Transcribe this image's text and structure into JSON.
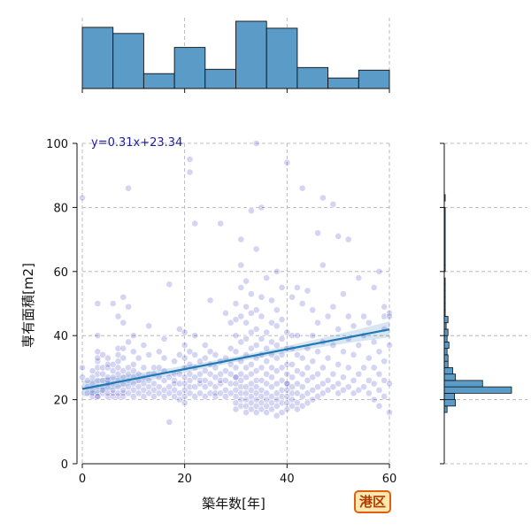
{
  "chart_data": {
    "type": "scatter",
    "xlabel": "築年数[年]",
    "ylabel": "専有面積[m2]",
    "equation": "y=0.31x+23.34",
    "xlim": [
      0,
      60
    ],
    "ylim": [
      0,
      100
    ],
    "xticks": [
      "0",
      "20",
      "40",
      "60"
    ],
    "yticks": [
      "0",
      "20",
      "40",
      "60",
      "80",
      "100"
    ],
    "grid": true,
    "regression": {
      "slope": 0.31,
      "intercept": 23.34
    },
    "colors": {
      "points": "#3a3ac8",
      "line": "#1f77b4",
      "bars": "#5a9bc8",
      "badge_border": "#e06010",
      "badge_fill": "#fde7b0"
    },
    "top_hist": {
      "bin_edges": [
        0,
        6,
        12,
        18,
        24,
        30,
        36,
        42,
        48,
        54,
        60
      ],
      "counts": [
        70,
        63,
        17,
        47,
        22,
        77,
        69,
        24,
        12,
        21
      ]
    },
    "right_hist": {
      "bin_edges": [
        16,
        18,
        20,
        22,
        24,
        26,
        28,
        30,
        32,
        34,
        36,
        38,
        40,
        42,
        44,
        46,
        48,
        50,
        52,
        54,
        56,
        58,
        60,
        62,
        80,
        82,
        84,
        86
      ],
      "counts": [
        3,
        12,
        11,
        72,
        41,
        12,
        9,
        4,
        4,
        3,
        5,
        3,
        4,
        2,
        4,
        1,
        1,
        1,
        1,
        1,
        1,
        0,
        1,
        1,
        0,
        1,
        0
      ]
    },
    "points": [
      [
        0,
        30
      ],
      [
        0,
        27
      ],
      [
        0,
        83
      ],
      [
        1,
        22
      ],
      [
        1,
        24
      ],
      [
        1,
        26
      ],
      [
        2,
        21
      ],
      [
        2,
        23
      ],
      [
        2,
        25
      ],
      [
        2,
        27
      ],
      [
        2,
        29
      ],
      [
        2,
        22
      ],
      [
        3,
        21
      ],
      [
        3,
        22
      ],
      [
        3,
        24
      ],
      [
        3,
        26
      ],
      [
        3,
        28
      ],
      [
        3,
        30
      ],
      [
        3,
        32
      ],
      [
        3,
        33
      ],
      [
        3,
        35
      ],
      [
        3,
        40
      ],
      [
        3,
        50
      ],
      [
        3,
        21
      ],
      [
        4,
        22
      ],
      [
        4,
        24
      ],
      [
        4,
        26
      ],
      [
        4,
        28
      ],
      [
        4,
        30
      ],
      [
        4,
        34
      ],
      [
        4,
        23
      ],
      [
        5,
        21
      ],
      [
        5,
        22
      ],
      [
        5,
        24
      ],
      [
        5,
        25
      ],
      [
        5,
        26
      ],
      [
        5,
        27
      ],
      [
        5,
        30
      ],
      [
        5,
        31
      ],
      [
        5,
        33
      ],
      [
        6,
        21
      ],
      [
        6,
        22
      ],
      [
        6,
        23
      ],
      [
        6,
        25
      ],
      [
        6,
        27
      ],
      [
        6,
        29
      ],
      [
        6,
        31
      ],
      [
        6,
        50
      ],
      [
        7,
        21
      ],
      [
        7,
        22
      ],
      [
        7,
        24
      ],
      [
        7,
        26
      ],
      [
        7,
        28
      ],
      [
        7,
        30
      ],
      [
        7,
        32
      ],
      [
        7,
        34
      ],
      [
        7,
        36
      ],
      [
        7,
        46
      ],
      [
        8,
        21
      ],
      [
        8,
        22
      ],
      [
        8,
        23
      ],
      [
        8,
        25
      ],
      [
        8,
        27
      ],
      [
        8,
        29
      ],
      [
        8,
        33
      ],
      [
        8,
        36
      ],
      [
        8,
        52
      ],
      [
        8,
        44
      ],
      [
        9,
        22
      ],
      [
        9,
        24
      ],
      [
        9,
        26
      ],
      [
        9,
        28
      ],
      [
        9,
        30
      ],
      [
        9,
        86
      ],
      [
        9,
        49
      ],
      [
        9,
        38
      ],
      [
        10,
        21
      ],
      [
        10,
        23
      ],
      [
        10,
        25
      ],
      [
        10,
        27
      ],
      [
        10,
        29
      ],
      [
        10,
        31
      ],
      [
        10,
        35
      ],
      [
        10,
        40
      ],
      [
        11,
        22
      ],
      [
        11,
        24
      ],
      [
        11,
        26
      ],
      [
        11,
        28
      ],
      [
        11,
        33
      ],
      [
        12,
        21
      ],
      [
        12,
        23
      ],
      [
        12,
        25
      ],
      [
        12,
        27
      ],
      [
        12,
        30
      ],
      [
        12,
        37
      ],
      [
        13,
        22
      ],
      [
        13,
        24
      ],
      [
        13,
        26
      ],
      [
        13,
        28
      ],
      [
        13,
        34
      ],
      [
        13,
        43
      ],
      [
        14,
        21
      ],
      [
        14,
        23
      ],
      [
        14,
        25
      ],
      [
        14,
        28
      ],
      [
        14,
        30
      ],
      [
        15,
        22
      ],
      [
        15,
        24
      ],
      [
        15,
        27
      ],
      [
        15,
        30
      ],
      [
        15,
        35
      ],
      [
        16,
        21
      ],
      [
        16,
        23
      ],
      [
        16,
        26
      ],
      [
        16,
        29
      ],
      [
        16,
        33
      ],
      [
        16,
        39
      ],
      [
        17,
        22
      ],
      [
        17,
        24
      ],
      [
        17,
        27
      ],
      [
        17,
        56
      ],
      [
        17,
        13
      ],
      [
        18,
        21
      ],
      [
        18,
        23
      ],
      [
        18,
        26
      ],
      [
        18,
        28
      ],
      [
        18,
        32
      ],
      [
        18,
        25
      ],
      [
        19,
        22
      ],
      [
        19,
        25
      ],
      [
        19,
        28
      ],
      [
        19,
        34
      ],
      [
        19,
        42
      ],
      [
        19,
        20
      ],
      [
        20,
        21
      ],
      [
        20,
        23
      ],
      [
        20,
        25
      ],
      [
        20,
        27
      ],
      [
        20,
        30
      ],
      [
        20,
        33
      ],
      [
        20,
        37
      ],
      [
        20,
        41
      ],
      [
        20,
        19
      ],
      [
        21,
        22
      ],
      [
        21,
        24
      ],
      [
        21,
        26
      ],
      [
        21,
        28
      ],
      [
        21,
        31
      ],
      [
        21,
        35
      ],
      [
        21,
        91
      ],
      [
        21,
        95
      ],
      [
        22,
        21
      ],
      [
        22,
        24
      ],
      [
        22,
        27
      ],
      [
        22,
        30
      ],
      [
        22,
        34
      ],
      [
        22,
        40
      ],
      [
        22,
        75
      ],
      [
        23,
        22
      ],
      [
        23,
        25
      ],
      [
        23,
        28
      ],
      [
        23,
        32
      ],
      [
        23,
        26
      ],
      [
        24,
        21
      ],
      [
        24,
        24
      ],
      [
        24,
        26
      ],
      [
        24,
        29
      ],
      [
        24,
        33
      ],
      [
        24,
        37
      ],
      [
        25,
        22
      ],
      [
        25,
        25
      ],
      [
        25,
        28
      ],
      [
        25,
        31
      ],
      [
        25,
        35
      ],
      [
        25,
        51
      ],
      [
        26,
        21
      ],
      [
        26,
        24
      ],
      [
        26,
        27
      ],
      [
        26,
        30
      ],
      [
        26,
        34
      ],
      [
        26,
        22
      ],
      [
        27,
        22
      ],
      [
        27,
        25
      ],
      [
        27,
        28
      ],
      [
        27,
        32
      ],
      [
        27,
        75
      ],
      [
        27,
        26
      ],
      [
        28,
        21
      ],
      [
        28,
        23
      ],
      [
        28,
        26
      ],
      [
        28,
        29
      ],
      [
        28,
        33
      ],
      [
        28,
        47
      ],
      [
        29,
        22
      ],
      [
        29,
        25
      ],
      [
        29,
        28
      ],
      [
        29,
        31
      ],
      [
        29,
        36
      ],
      [
        29,
        44
      ],
      [
        30,
        17
      ],
      [
        30,
        19
      ],
      [
        30,
        21
      ],
      [
        30,
        23
      ],
      [
        30,
        25
      ],
      [
        30,
        27
      ],
      [
        30,
        30
      ],
      [
        30,
        35
      ],
      [
        30,
        40
      ],
      [
        30,
        45
      ],
      [
        30,
        50
      ],
      [
        30,
        27
      ],
      [
        31,
        18
      ],
      [
        31,
        20
      ],
      [
        31,
        22
      ],
      [
        31,
        24
      ],
      [
        31,
        26
      ],
      [
        31,
        28
      ],
      [
        31,
        32
      ],
      [
        31,
        38
      ],
      [
        31,
        46
      ],
      [
        31,
        55
      ],
      [
        31,
        62
      ],
      [
        31,
        70
      ],
      [
        32,
        16
      ],
      [
        32,
        18
      ],
      [
        32,
        20
      ],
      [
        32,
        22
      ],
      [
        32,
        24
      ],
      [
        32,
        27
      ],
      [
        32,
        30
      ],
      [
        32,
        34
      ],
      [
        32,
        39
      ],
      [
        32,
        44
      ],
      [
        32,
        49
      ],
      [
        32,
        57
      ],
      [
        33,
        17
      ],
      [
        33,
        19
      ],
      [
        33,
        21
      ],
      [
        33,
        23
      ],
      [
        33,
        25
      ],
      [
        33,
        28
      ],
      [
        33,
        31
      ],
      [
        33,
        36
      ],
      [
        33,
        41
      ],
      [
        33,
        47
      ],
      [
        33,
        53
      ],
      [
        33,
        79
      ],
      [
        34,
        16
      ],
      [
        34,
        18
      ],
      [
        34,
        20
      ],
      [
        34,
        22
      ],
      [
        34,
        24
      ],
      [
        34,
        26
      ],
      [
        34,
        29
      ],
      [
        34,
        33
      ],
      [
        34,
        37
      ],
      [
        34,
        42
      ],
      [
        34,
        48
      ],
      [
        34,
        67
      ],
      [
        34,
        100
      ],
      [
        35,
        17
      ],
      [
        35,
        19
      ],
      [
        35,
        21
      ],
      [
        35,
        23
      ],
      [
        35,
        26
      ],
      [
        35,
        30
      ],
      [
        35,
        34
      ],
      [
        35,
        39
      ],
      [
        35,
        46
      ],
      [
        35,
        52
      ],
      [
        35,
        80
      ],
      [
        36,
        16
      ],
      [
        36,
        18
      ],
      [
        36,
        20
      ],
      [
        36,
        22
      ],
      [
        36,
        25
      ],
      [
        36,
        28
      ],
      [
        36,
        32
      ],
      [
        36,
        36
      ],
      [
        36,
        41
      ],
      [
        36,
        58
      ],
      [
        37,
        17
      ],
      [
        37,
        19
      ],
      [
        37,
        21
      ],
      [
        37,
        24
      ],
      [
        37,
        27
      ],
      [
        37,
        30
      ],
      [
        37,
        34
      ],
      [
        37,
        38
      ],
      [
        37,
        44
      ],
      [
        37,
        51
      ],
      [
        38,
        15
      ],
      [
        38,
        18
      ],
      [
        38,
        20
      ],
      [
        38,
        22
      ],
      [
        38,
        25
      ],
      [
        38,
        29
      ],
      [
        38,
        33
      ],
      [
        38,
        37
      ],
      [
        38,
        43
      ],
      [
        38,
        48
      ],
      [
        38,
        60
      ],
      [
        39,
        16
      ],
      [
        39,
        19
      ],
      [
        39,
        21
      ],
      [
        39,
        23
      ],
      [
        39,
        26
      ],
      [
        39,
        30
      ],
      [
        39,
        34
      ],
      [
        39,
        39
      ],
      [
        39,
        45
      ],
      [
        39,
        55
      ],
      [
        40,
        17
      ],
      [
        40,
        19
      ],
      [
        40,
        21
      ],
      [
        40,
        23
      ],
      [
        40,
        25
      ],
      [
        40,
        28
      ],
      [
        40,
        31
      ],
      [
        40,
        36
      ],
      [
        40,
        41
      ],
      [
        40,
        94
      ],
      [
        40,
        25
      ],
      [
        41,
        18
      ],
      [
        41,
        20
      ],
      [
        41,
        22
      ],
      [
        41,
        24
      ],
      [
        41,
        27
      ],
      [
        41,
        31
      ],
      [
        41,
        36
      ],
      [
        41,
        40
      ],
      [
        41,
        52
      ],
      [
        42,
        17
      ],
      [
        42,
        19
      ],
      [
        42,
        22
      ],
      [
        42,
        25
      ],
      [
        42,
        29
      ],
      [
        42,
        34
      ],
      [
        42,
        40
      ],
      [
        42,
        55
      ],
      [
        43,
        18
      ],
      [
        43,
        21
      ],
      [
        43,
        24
      ],
      [
        43,
        28
      ],
      [
        43,
        33
      ],
      [
        43,
        50
      ],
      [
        43,
        86
      ],
      [
        44,
        19
      ],
      [
        44,
        22
      ],
      [
        44,
        26
      ],
      [
        44,
        30
      ],
      [
        44,
        36
      ],
      [
        44,
        54
      ],
      [
        45,
        20
      ],
      [
        45,
        23
      ],
      [
        45,
        27
      ],
      [
        45,
        32
      ],
      [
        45,
        40
      ],
      [
        45,
        48
      ],
      [
        46,
        21
      ],
      [
        46,
        24
      ],
      [
        46,
        28
      ],
      [
        46,
        35
      ],
      [
        46,
        44
      ],
      [
        46,
        72
      ],
      [
        47,
        22
      ],
      [
        47,
        25
      ],
      [
        47,
        30
      ],
      [
        47,
        38
      ],
      [
        47,
        62
      ],
      [
        47,
        83
      ],
      [
        48,
        23
      ],
      [
        48,
        26
      ],
      [
        48,
        33
      ],
      [
        48,
        46
      ],
      [
        49,
        24
      ],
      [
        49,
        28
      ],
      [
        49,
        37
      ],
      [
        49,
        49
      ],
      [
        49,
        81
      ],
      [
        50,
        22
      ],
      [
        50,
        25
      ],
      [
        50,
        31
      ],
      [
        50,
        42
      ],
      [
        50,
        71
      ],
      [
        51,
        23
      ],
      [
        51,
        27
      ],
      [
        51,
        35
      ],
      [
        51,
        53
      ],
      [
        52,
        24
      ],
      [
        52,
        30
      ],
      [
        52,
        39
      ],
      [
        52,
        46
      ],
      [
        52,
        70
      ],
      [
        53,
        22
      ],
      [
        53,
        26
      ],
      [
        53,
        34
      ],
      [
        53,
        43
      ],
      [
        54,
        23
      ],
      [
        54,
        28
      ],
      [
        54,
        37
      ],
      [
        54,
        58
      ],
      [
        55,
        24
      ],
      [
        55,
        30
      ],
      [
        55,
        40
      ],
      [
        55,
        46
      ],
      [
        56,
        22
      ],
      [
        56,
        26
      ],
      [
        56,
        33
      ],
      [
        56,
        44
      ],
      [
        57,
        20
      ],
      [
        57,
        25
      ],
      [
        57,
        30
      ],
      [
        57,
        38
      ],
      [
        57,
        55
      ],
      [
        58,
        18
      ],
      [
        58,
        23
      ],
      [
        58,
        28
      ],
      [
        58,
        35
      ],
      [
        58,
        60
      ],
      [
        59,
        21
      ],
      [
        59,
        26
      ],
      [
        59,
        32
      ],
      [
        59,
        42
      ],
      [
        59,
        49
      ],
      [
        59,
        46
      ],
      [
        60,
        16
      ],
      [
        60,
        25
      ],
      [
        60,
        37
      ],
      [
        60,
        47
      ],
      [
        60,
        46
      ]
    ]
  },
  "badge": {
    "label": "港区"
  }
}
